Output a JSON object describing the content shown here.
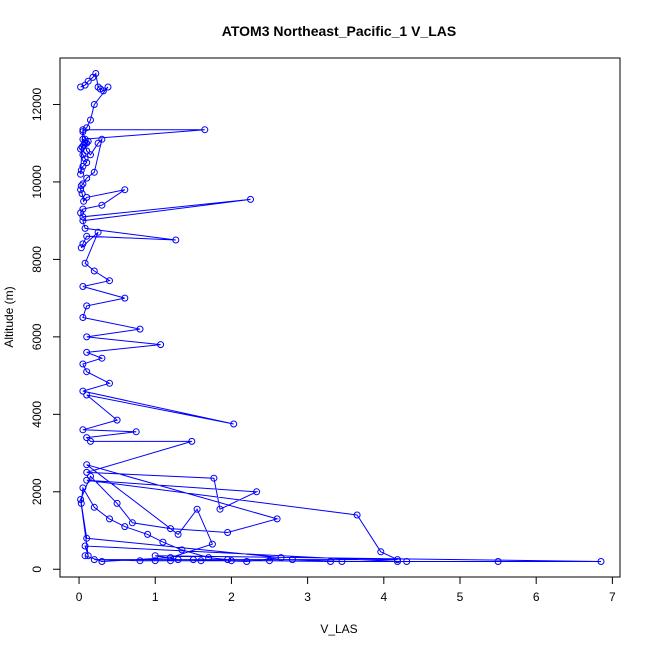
{
  "chart_data": {
    "type": "line",
    "title": "ATOM3 Northeast_Pacific_1 V_LAS",
    "xlabel": "V_LAS",
    "ylabel": "Altitude (m)",
    "xlim": [
      -0.25,
      7.1
    ],
    "ylim": [
      -200,
      13200
    ],
    "xticks": [
      0,
      1,
      2,
      3,
      4,
      5,
      6,
      7
    ],
    "yticks": [
      0,
      2000,
      4000,
      6000,
      8000,
      10000,
      12000
    ],
    "color": "#0000ff",
    "markers": "open-circle",
    "grid": false,
    "legend": "none",
    "series": [
      {
        "x": [
          0.02,
          0.08,
          0.12,
          0.18,
          0.22,
          0.25,
          0.28,
          0.32,
          0.38,
          0.2,
          0.15,
          0.1,
          0.05,
          0.08,
          0.12,
          0.1,
          0.06,
          0.04,
          0.02,
          0.05,
          0.08,
          0.1,
          0.05,
          0.03,
          0.02,
          0.05,
          1.65,
          0.05,
          0.08,
          0.1,
          0.15,
          0.25,
          0.3,
          0.2,
          0.1,
          0.05,
          0.03,
          0.02,
          0.04,
          0.06,
          0.1,
          0.6,
          0.3,
          0.05,
          0.02,
          0.05,
          2.25,
          0.05,
          0.08,
          1.27,
          0.1,
          0.05,
          0.03,
          0.25,
          0.08,
          0.2,
          0.4,
          0.05,
          0.6,
          0.1,
          0.05,
          0.8,
          0.1,
          1.07,
          0.1,
          0.3,
          0.05,
          0.1,
          0.4,
          0.05,
          2.03,
          0.1,
          0.5,
          0.05,
          0.75,
          0.1,
          0.15,
          1.48,
          0.1,
          1.77,
          1.85,
          2.33,
          0.1,
          3.65,
          3.96,
          4.18,
          0.2,
          0.8,
          1.0,
          1.2,
          1.6,
          2.0,
          2.5,
          3.3,
          4.3,
          5.5,
          6.85,
          1.0,
          1.3,
          1.5,
          2.2,
          2.65,
          0.1,
          0.03,
          0.05,
          0.2,
          0.4,
          0.6,
          0.9,
          1.1,
          1.35,
          1.7,
          1.95,
          2.8,
          3.45,
          4.18,
          0.08,
          0.12,
          0.02,
          0.15,
          0.5,
          0.7,
          1.2,
          1.95,
          2.6,
          0.1,
          1.3,
          1.55,
          1.75,
          1.2,
          0.3,
          0.08
        ],
        "y": [
          12450,
          12500,
          12600,
          12700,
          12800,
          12450,
          12400,
          12350,
          12450,
          12000,
          11600,
          11400,
          11300,
          11100,
          11050,
          11000,
          10950,
          10900,
          10850,
          10700,
          10600,
          10500,
          10400,
          10300,
          10200,
          11350,
          11350,
          11100,
          11000,
          10800,
          10700,
          11000,
          11100,
          10250,
          10100,
          9950,
          9900,
          9800,
          9700,
          9500,
          9600,
          9800,
          9400,
          9300,
          9200,
          9100,
          9550,
          9000,
          8800,
          8500,
          8600,
          8400,
          8300,
          8700,
          7900,
          7700,
          7450,
          7300,
          7000,
          6800,
          6500,
          6200,
          6000,
          5800,
          5600,
          5450,
          5300,
          5100,
          4800,
          4600,
          3750,
          4500,
          3850,
          3600,
          3550,
          3400,
          3300,
          3300,
          2500,
          2350,
          1550,
          2000,
          2300,
          1400,
          450,
          250,
          250,
          220,
          220,
          220,
          220,
          220,
          220,
          200,
          200,
          200,
          200,
          350,
          250,
          250,
          200,
          300,
          800,
          1700,
          2100,
          1600,
          1300,
          1100,
          900,
          700,
          500,
          300,
          250,
          250,
          200,
          200,
          600,
          350,
          1800,
          2400,
          1700,
          1200,
          1050,
          950,
          1300,
          2700,
          900,
          1550,
          650,
          300,
          200,
          350
        ]
      }
    ]
  }
}
